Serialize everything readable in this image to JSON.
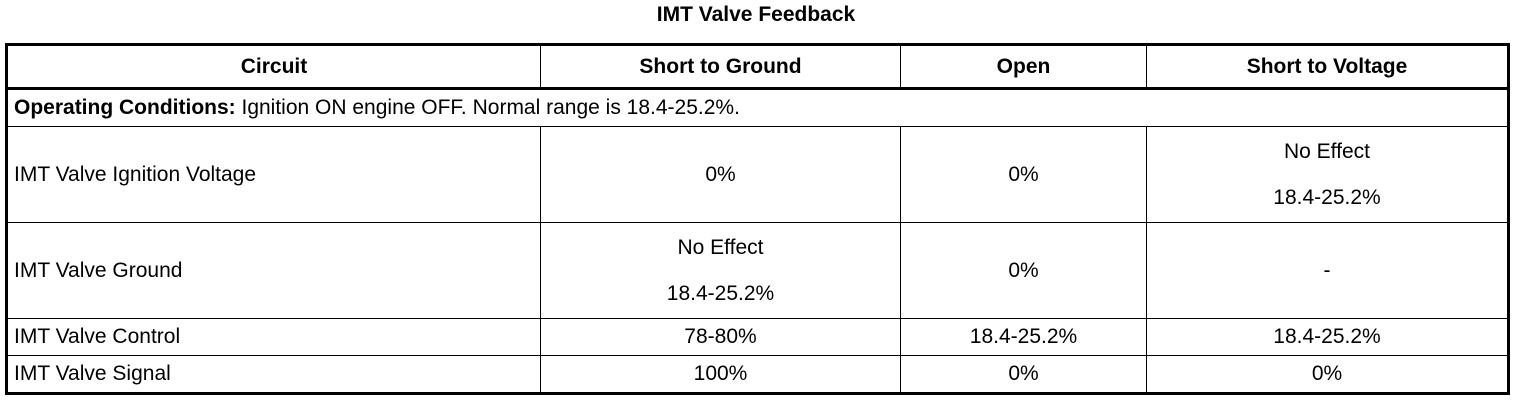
{
  "title": "IMT Valve Feedback",
  "headers": [
    "Circuit",
    "Short to Ground",
    "Open",
    "Short to Voltage"
  ],
  "conditions": {
    "label": "Operating Conditions:",
    "text": " Ignition ON engine OFF. Normal range is 18.4-25.2%."
  },
  "rows": [
    {
      "circuit": "IMT Valve Ignition Voltage",
      "short_to_ground": "0%",
      "open": "0%",
      "short_to_voltage": {
        "line1": "No Effect",
        "line2": "18.4-25.2%"
      }
    },
    {
      "circuit": "IMT Valve Ground",
      "short_to_ground": {
        "line1": "No Effect",
        "line2": "18.4-25.2%"
      },
      "open": "0%",
      "short_to_voltage": "-"
    },
    {
      "circuit": "IMT Valve Control",
      "short_to_ground": "78-80%",
      "open": "18.4-25.2%",
      "short_to_voltage": "18.4-25.2%"
    },
    {
      "circuit": "IMT Valve Signal",
      "short_to_ground": "100%",
      "open": "0%",
      "short_to_voltage": "0%"
    }
  ]
}
